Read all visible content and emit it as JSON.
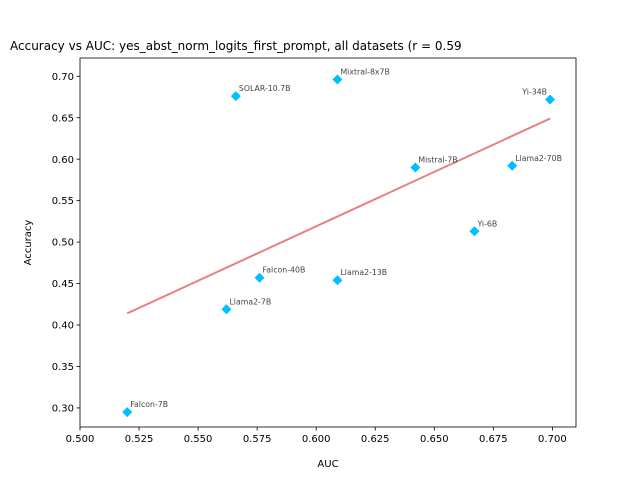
{
  "chart_data": {
    "type": "scatter",
    "title": "Accuracy vs AUC: yes_abst_norm_logits_first_prompt, all datasets (r = 0.59",
    "xlabel": "AUC",
    "ylabel": "Accuracy",
    "xlim": [
      0.5,
      0.71
    ],
    "ylim": [
      0.277,
      0.722
    ],
    "xticks": [
      0.5,
      0.525,
      0.55,
      0.575,
      0.6,
      0.625,
      0.65,
      0.675,
      0.7
    ],
    "xtick_labels": [
      "0.500",
      "0.525",
      "0.550",
      "0.575",
      "0.600",
      "0.625",
      "0.650",
      "0.675",
      "0.700"
    ],
    "yticks": [
      0.3,
      0.35,
      0.4,
      0.45,
      0.5,
      0.55,
      0.6,
      0.65,
      0.7
    ],
    "ytick_labels": [
      "0.30",
      "0.35",
      "0.40",
      "0.45",
      "0.50",
      "0.55",
      "0.60",
      "0.65",
      "0.70"
    ],
    "grid": false,
    "marker_color": "#00bfff",
    "trend_color": "#e88080",
    "points": [
      {
        "label": "Falcon-7B",
        "x": 0.52,
        "y": 0.295
      },
      {
        "label": "Llama2-7B",
        "x": 0.562,
        "y": 0.419
      },
      {
        "label": "Falcon-40B",
        "x": 0.576,
        "y": 0.457
      },
      {
        "label": "Llama2-13B",
        "x": 0.609,
        "y": 0.454
      },
      {
        "label": "SOLAR-10.7B",
        "x": 0.566,
        "y": 0.676
      },
      {
        "label": "Mixtral-8x7B",
        "x": 0.609,
        "y": 0.696
      },
      {
        "label": "Mistral-7B",
        "x": 0.642,
        "y": 0.59
      },
      {
        "label": "Yi-6B",
        "x": 0.667,
        "y": 0.513
      },
      {
        "label": "Llama2-70B",
        "x": 0.683,
        "y": 0.592
      },
      {
        "label": "Yi-34B",
        "x": 0.699,
        "y": 0.672
      }
    ],
    "trend_line": {
      "x": [
        0.52,
        0.699
      ],
      "y": [
        0.414,
        0.649
      ]
    }
  }
}
